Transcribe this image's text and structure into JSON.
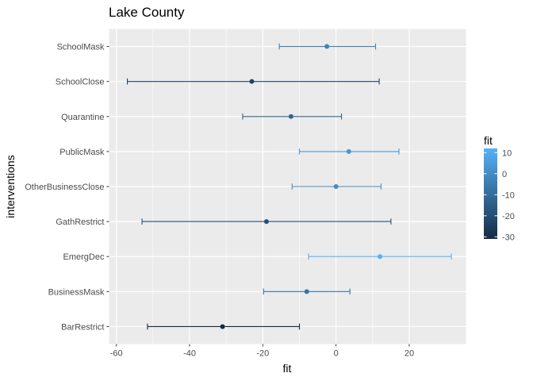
{
  "chart_data": {
    "type": "scatter",
    "title": "Lake County",
    "xlabel": "fit",
    "ylabel": "interventions",
    "xlim": [
      -62,
      35.5
    ],
    "xticks": [
      -60,
      -40,
      -20,
      0,
      20
    ],
    "xtick_labels": [
      "-60",
      "-40",
      "-20",
      "0",
      "20"
    ],
    "categories": [
      "SchoolMask",
      "SchoolClose",
      "Quarantine",
      "PublicMask",
      "OtherBusinessClose",
      "GathRestrict",
      "EmergDec",
      "BusinessMask",
      "BarRestrict"
    ],
    "series": [
      {
        "fit": [
          -2.5,
          -23,
          -12.3,
          3.5,
          0,
          -19,
          12,
          -8,
          -31
        ],
        "lower": [
          -15.5,
          -57,
          -25.5,
          -10,
          -12,
          -53,
          -7.5,
          -19.8,
          -51.5
        ],
        "upper": [
          10.8,
          11.8,
          1.5,
          17.2,
          12.3,
          15,
          31.5,
          3.8,
          -10
        ]
      }
    ],
    "color_legend": {
      "title": "fit",
      "ticks": [
        10,
        0,
        -10,
        -20,
        -30
      ],
      "tick_labels": [
        "10",
        "0",
        "-10",
        "-20",
        "-30"
      ],
      "range": [
        -31,
        12
      ],
      "low_color": "#132B43",
      "high_color": "#56B1F7"
    },
    "background": "#EBEBEB",
    "grid": true,
    "legend_position": "right"
  }
}
